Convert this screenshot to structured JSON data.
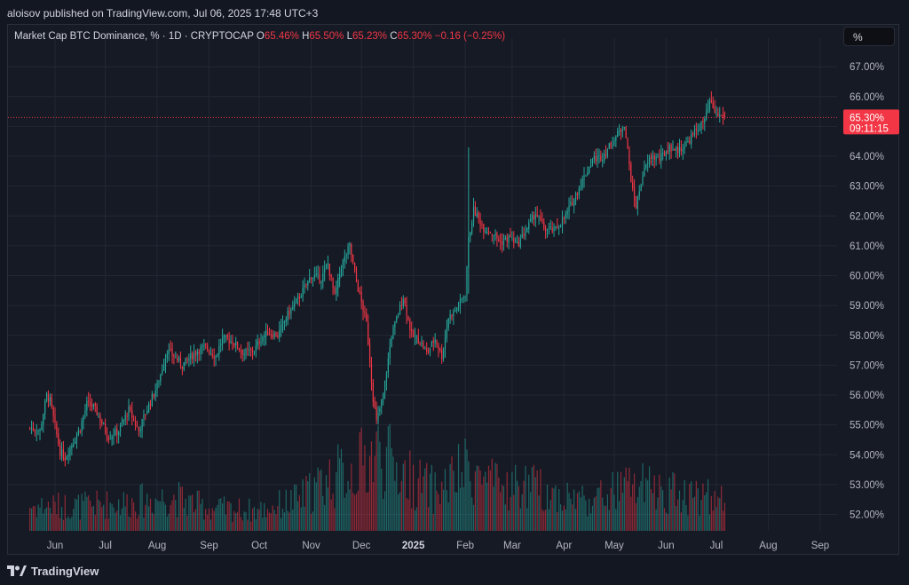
{
  "header": {
    "published": "aloisov published on TradingView.com, Jul 06, 2025 17:48 UTC+3"
  },
  "legend": {
    "title": "Market Cap BTC Dominance, % · 1D · CRYPTOCAP",
    "o_label": "O",
    "o_value": "65.46%",
    "h_label": "H",
    "h_value": "65.50%",
    "l_label": "L",
    "l_value": "65.23%",
    "c_label": "C",
    "c_value": "65.30%",
    "change": "−0.16 (−0.25%)"
  },
  "scale_button": {
    "label": "%"
  },
  "footer": {
    "brand": "TradingView",
    "logo_icon": "tradingview-logo-icon"
  },
  "price_label": {
    "value": "65.30%",
    "countdown": "09:11:15"
  },
  "colors": {
    "up": "#26a69a",
    "down": "#f23645",
    "background": "#161a25",
    "grid": "#232735",
    "text": "#b2b5be"
  },
  "chart_data": {
    "type": "candlestick",
    "title": "Market Cap BTC Dominance, % · 1D · CRYPTOCAP",
    "y_axis": {
      "ticks": [
        "67.00%",
        "66.00%",
        "65.00%",
        "64.00%",
        "63.00%",
        "62.00%",
        "61.00%",
        "60.00%",
        "59.00%",
        "58.00%",
        "57.00%",
        "56.00%",
        "55.00%",
        "54.00%",
        "53.00%",
        "52.00%"
      ],
      "range": [
        51.45,
        67.6
      ],
      "position": "right"
    },
    "x_axis": {
      "ticks": [
        "Jun",
        "Jul",
        "Aug",
        "Sep",
        "Oct",
        "Nov",
        "Dec",
        "2025",
        "Feb",
        "Mar",
        "Apr",
        "May",
        "Jun",
        "Jul",
        "Aug",
        "Sep"
      ],
      "bold": [
        "2025"
      ]
    },
    "last": {
      "value": 65.3,
      "label": "65.30%"
    },
    "ohlc_last": {
      "open": 65.46,
      "high": 65.5,
      "low": 65.23,
      "close": 65.3
    },
    "path": [
      [
        "2024-05-17",
        54.9
      ],
      [
        "2024-05-23",
        54.8
      ],
      [
        "2024-05-27",
        56.0
      ],
      [
        "2024-05-29",
        55.8
      ],
      [
        "2024-06-04",
        54.1
      ],
      [
        "2024-06-07",
        53.9
      ],
      [
        "2024-06-16",
        54.9
      ],
      [
        "2024-06-20",
        55.7
      ],
      [
        "2024-06-24",
        55.6
      ],
      [
        "2024-06-28",
        55.2
      ],
      [
        "2024-07-03",
        54.6
      ],
      [
        "2024-07-09",
        54.8
      ],
      [
        "2024-07-15",
        55.5
      ],
      [
        "2024-07-21",
        54.8
      ],
      [
        "2024-07-25",
        55.4
      ],
      [
        "2024-08-01",
        56.3
      ],
      [
        "2024-08-07",
        57.5
      ],
      [
        "2024-08-11",
        57.3
      ],
      [
        "2024-08-16",
        57.0
      ],
      [
        "2024-08-25",
        57.5
      ],
      [
        "2024-08-30",
        57.6
      ],
      [
        "2024-09-05",
        57.3
      ],
      [
        "2024-09-09",
        57.9
      ],
      [
        "2024-09-15",
        57.8
      ],
      [
        "2024-09-22",
        57.4
      ],
      [
        "2024-09-28",
        57.5
      ],
      [
        "2024-10-02",
        57.9
      ],
      [
        "2024-10-06",
        58.1
      ],
      [
        "2024-10-12",
        58.0
      ],
      [
        "2024-10-18",
        58.7
      ],
      [
        "2024-10-25",
        59.3
      ],
      [
        "2024-11-01",
        60.0
      ],
      [
        "2024-11-07",
        59.9
      ],
      [
        "2024-11-11",
        60.4
      ],
      [
        "2024-11-15",
        59.3
      ],
      [
        "2024-11-19",
        60.3
      ],
      [
        "2024-11-24",
        61.0
      ],
      [
        "2024-11-28",
        59.8
      ],
      [
        "2024-12-04",
        58.4
      ],
      [
        "2024-12-08",
        55.9
      ],
      [
        "2024-12-10",
        55.1
      ],
      [
        "2024-12-14",
        56.0
      ],
      [
        "2024-12-19",
        58.0
      ],
      [
        "2024-12-26",
        59.3
      ],
      [
        "2024-12-31",
        58.0
      ],
      [
        "2025-01-05",
        57.8
      ],
      [
        "2025-01-09",
        57.4
      ],
      [
        "2025-01-14",
        57.9
      ],
      [
        "2025-01-18",
        57.3
      ],
      [
        "2025-01-22",
        58.6
      ],
      [
        "2025-01-27",
        58.9
      ],
      [
        "2025-02-01",
        59.4
      ],
      [
        "2025-02-03",
        61.2
      ],
      [
        "2025-02-06",
        62.2
      ],
      [
        "2025-02-12",
        61.6
      ],
      [
        "2025-02-18",
        61.4
      ],
      [
        "2025-02-22",
        61.1
      ],
      [
        "2025-02-28",
        61.3
      ],
      [
        "2025-03-04",
        61.0
      ],
      [
        "2025-03-10",
        61.6
      ],
      [
        "2025-03-15",
        62.1
      ],
      [
        "2025-03-20",
        61.6
      ],
      [
        "2025-03-26",
        61.5
      ],
      [
        "2025-04-02",
        62.0
      ],
      [
        "2025-04-07",
        62.6
      ],
      [
        "2025-04-13",
        63.3
      ],
      [
        "2025-04-18",
        63.9
      ],
      [
        "2025-04-24",
        64.0
      ],
      [
        "2025-04-29",
        64.4
      ],
      [
        "2025-05-05",
        64.9
      ],
      [
        "2025-05-07",
        65.1
      ],
      [
        "2025-05-10",
        63.7
      ],
      [
        "2025-05-12",
        62.8
      ],
      [
        "2025-05-14",
        62.3
      ],
      [
        "2025-05-18",
        63.4
      ],
      [
        "2025-05-23",
        64.0
      ],
      [
        "2025-05-28",
        63.9
      ],
      [
        "2025-06-03",
        64.3
      ],
      [
        "2025-06-08",
        64.2
      ],
      [
        "2025-06-13",
        64.4
      ],
      [
        "2025-06-18",
        64.8
      ],
      [
        "2025-06-24",
        65.2
      ],
      [
        "2025-06-27",
        65.8
      ],
      [
        "2025-07-01",
        65.4
      ],
      [
        "2025-07-06",
        65.3
      ]
    ],
    "spikes": [
      {
        "date": "2025-02-03",
        "high": 64.3,
        "low": 59.4
      }
    ],
    "volume_profile": [
      [
        "2024-05-17",
        0.22
      ],
      [
        "2024-06-15",
        0.22
      ],
      [
        "2024-07-15",
        0.25
      ],
      [
        "2024-08-10",
        0.3
      ],
      [
        "2024-09-01",
        0.2
      ],
      [
        "2024-10-01",
        0.18
      ],
      [
        "2024-10-25",
        0.28
      ],
      [
        "2024-11-10",
        0.45
      ],
      [
        "2024-11-28",
        0.55
      ],
      [
        "2024-12-10",
        0.7
      ],
      [
        "2024-12-31",
        0.45
      ],
      [
        "2025-01-15",
        0.35
      ],
      [
        "2025-02-03",
        0.55
      ],
      [
        "2025-02-20",
        0.38
      ],
      [
        "2025-03-10",
        0.4
      ],
      [
        "2025-04-01",
        0.3
      ],
      [
        "2025-04-20",
        0.28
      ],
      [
        "2025-05-10",
        0.4
      ],
      [
        "2025-06-01",
        0.35
      ],
      [
        "2025-06-20",
        0.32
      ],
      [
        "2025-07-06",
        0.26
      ]
    ]
  }
}
